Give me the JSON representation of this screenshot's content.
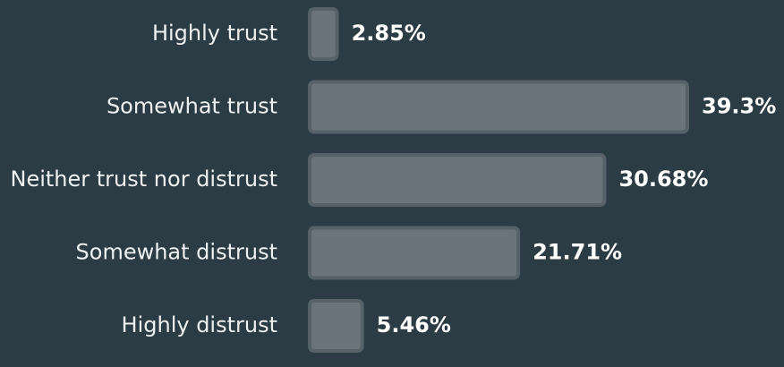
{
  "chart_data": {
    "type": "bar",
    "orientation": "horizontal",
    "categories": [
      "Highly trust",
      "Somewhat trust",
      "Neither trust nor distrust",
      "Somewhat distrust",
      "Highly distrust"
    ],
    "values": [
      2.85,
      39.3,
      30.68,
      21.71,
      5.46
    ],
    "value_labels": [
      "2.85%",
      "39.3%",
      "30.68%",
      "21.71%",
      "5.46%"
    ],
    "color": "#6b737b"
  }
}
